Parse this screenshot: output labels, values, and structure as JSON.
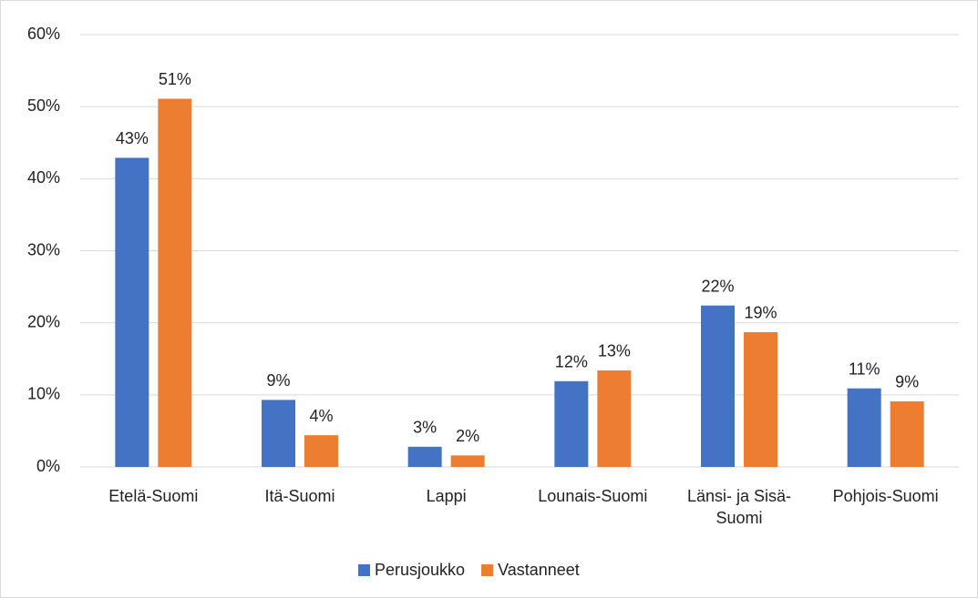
{
  "chart_data": {
    "type": "bar",
    "categories": [
      "Etelä-Suomi",
      "Itä-Suomi",
      "Lappi",
      "Lounais-Suomi",
      "Länsi- ja Sisä-Suomi",
      "Pohjois-Suomi"
    ],
    "series": [
      {
        "name": "Perusjoukko",
        "color": "#4472c4",
        "values": [
          42.9,
          9.3,
          2.8,
          11.9,
          22.4,
          10.9
        ],
        "value_labels": [
          "43%",
          "9%",
          "3%",
          "12%",
          "22%",
          "11%"
        ]
      },
      {
        "name": "Vastanneet",
        "color": "#ed7d31",
        "values": [
          51.1,
          4.4,
          1.6,
          13.4,
          18.7,
          9.1
        ],
        "value_labels": [
          "51%",
          "4%",
          "2%",
          "13%",
          "19%",
          "9%"
        ]
      }
    ],
    "ylim": [
      0,
      60
    ],
    "yticks": [
      {
        "value": 0,
        "label": "0%"
      },
      {
        "value": 10,
        "label": "10%"
      },
      {
        "value": 20,
        "label": "20%"
      },
      {
        "value": 30,
        "label": "30%"
      },
      {
        "value": 40,
        "label": "40%"
      },
      {
        "value": 50,
        "label": "50%"
      },
      {
        "value": 60,
        "label": "60%"
      }
    ],
    "grid": true,
    "legend": "bottom"
  }
}
